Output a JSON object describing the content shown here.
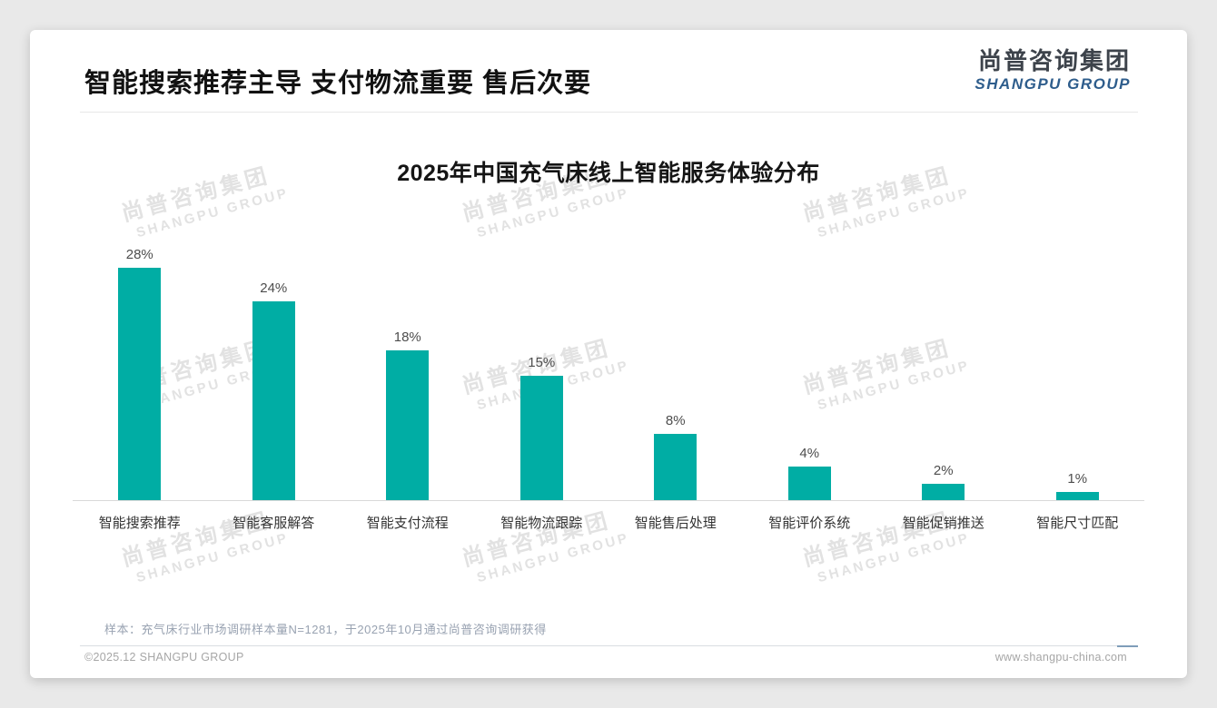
{
  "slide": {
    "headline": "智能搜索推荐主导 支付物流重要 售后次要",
    "logo": {
      "name_cn": "尚普咨询集团",
      "name_en": "SHANGPU GROUP"
    },
    "watermark_cn": "尚普咨询集团",
    "watermark_en": "SHANGPU GROUP",
    "footnote": "样本：充气床行业市场调研样本量N=1281，于2025年10月通过尚普咨询调研获得",
    "footer_left": "©2025.12 SHANGPU GROUP",
    "footer_right": "www.shangpu-china.com"
  },
  "chart_data": {
    "type": "bar",
    "title": "2025年中国充气床线上智能服务体验分布",
    "categories": [
      "智能搜索推荐",
      "智能客服解答",
      "智能支付流程",
      "智能物流跟踪",
      "智能售后处理",
      "智能评价系统",
      "智能促销推送",
      "智能尺寸匹配"
    ],
    "values": [
      28,
      24,
      18,
      15,
      8,
      4,
      2,
      1
    ],
    "value_labels": [
      "28%",
      "24%",
      "18%",
      "15%",
      "8%",
      "4%",
      "2%",
      "1%"
    ],
    "unit": "%",
    "xlabel": "",
    "ylabel": "",
    "ylim": [
      0,
      30
    ],
    "grid": false,
    "legend": false,
    "bar_color": "#00ada4"
  },
  "colors": {
    "accent_teal": "#00ada4",
    "logo_dark": "#3d434b",
    "logo_blue": "#2e5d8c",
    "divider_accent_blue": "#7f9db9"
  }
}
